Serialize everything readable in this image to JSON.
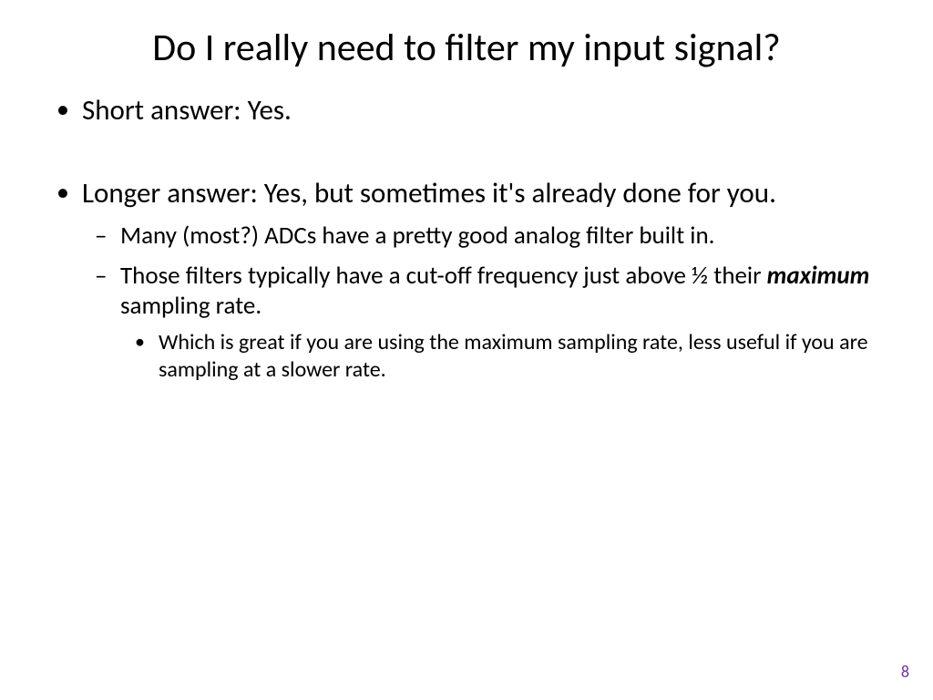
{
  "title": "Do I really need to filter my input signal?",
  "bullets": {
    "level1": [
      "Short answer: Yes.",
      "Longer answer: Yes, but sometimes it's already done for you."
    ],
    "level2": [
      "Many (most?) ADCs have a pretty good analog filter built in.",
      {
        "pre": "Those filters typically have a cut-off frequency just above ½ their ",
        "emph": "maximum",
        "post": " sampling rate."
      }
    ],
    "level3": [
      "Which is great if you are using the maximum sampling rate, less useful if you are sampling at a slower rate."
    ]
  },
  "page_number": "8",
  "colors": {
    "background": "#ffffff",
    "text": "#000000",
    "page_number": "#7030a0"
  },
  "typography": {
    "title_fontsize": 42,
    "level1_fontsize": 31,
    "level2_fontsize": 27,
    "level3_fontsize": 24,
    "page_number_fontsize": 18,
    "font_family": "Calibri"
  }
}
